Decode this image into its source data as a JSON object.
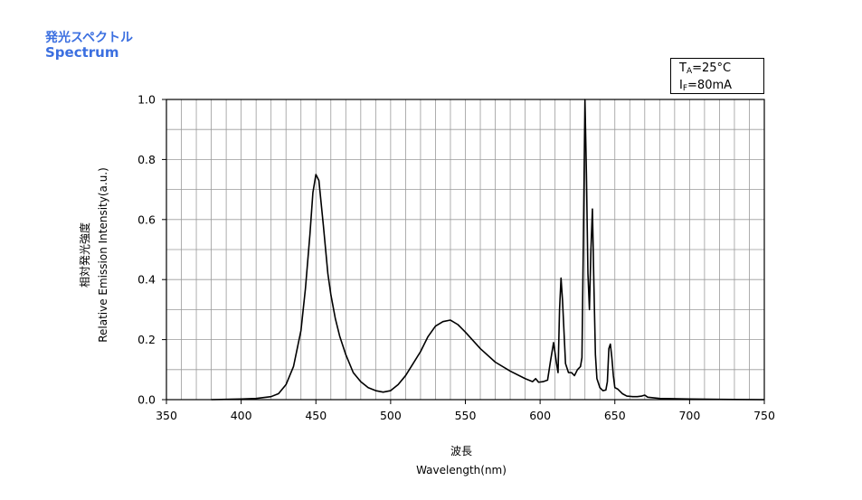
{
  "title_jp": "発光スペクトル",
  "title_en": "Spectrum",
  "conditions": {
    "ta_symbol": "T",
    "ta_sub": "A",
    "ta_value": "=25°C",
    "if_symbol": "I",
    "if_sub": "F",
    "if_value": "=80mA"
  },
  "chart_data": {
    "type": "line",
    "title": "Spectrum",
    "xlabel_jp": "波長",
    "xlabel": "Wavelength(nm)",
    "ylabel_jp": "相対発光強度",
    "ylabel": "Relative Emission Intensity(a.u.)",
    "xlim": [
      350,
      750
    ],
    "ylim": [
      0,
      1.0
    ],
    "xticks": [
      "350",
      "400",
      "450",
      "500",
      "550",
      "600",
      "650",
      "700",
      "750"
    ],
    "yticks": [
      "0.0",
      "0.2",
      "0.4",
      "0.6",
      "0.8",
      "1.0"
    ],
    "grid": true,
    "series": [
      {
        "x": [
          380,
          400,
          410,
          420,
          425,
          430,
          435,
          440,
          443,
          446,
          448,
          450,
          452,
          455,
          458,
          460,
          463,
          466,
          470,
          475,
          480,
          485,
          490,
          495,
          500,
          505,
          510,
          515,
          520,
          525,
          530,
          535,
          540,
          545,
          550,
          560,
          570,
          580,
          590,
          595,
          597,
          599,
          602,
          605,
          607,
          609,
          611,
          612,
          613,
          614,
          615,
          617,
          619,
          621,
          623,
          625,
          627,
          628,
          629,
          630,
          631,
          632,
          633,
          634,
          635,
          636,
          637,
          638,
          640,
          642,
          644,
          645,
          646,
          647,
          648,
          649,
          650,
          652,
          655,
          658,
          662,
          665,
          668,
          670,
          672,
          680,
          700,
          720,
          750
        ],
        "y": [
          0.0,
          0.002,
          0.004,
          0.01,
          0.02,
          0.05,
          0.11,
          0.23,
          0.37,
          0.55,
          0.69,
          0.75,
          0.73,
          0.58,
          0.42,
          0.35,
          0.27,
          0.21,
          0.15,
          0.09,
          0.06,
          0.04,
          0.03,
          0.025,
          0.03,
          0.05,
          0.08,
          0.12,
          0.16,
          0.21,
          0.245,
          0.26,
          0.265,
          0.25,
          0.225,
          0.17,
          0.125,
          0.095,
          0.07,
          0.06,
          0.07,
          0.058,
          0.06,
          0.065,
          0.13,
          0.19,
          0.12,
          0.09,
          0.3,
          0.405,
          0.33,
          0.12,
          0.09,
          0.09,
          0.08,
          0.1,
          0.11,
          0.14,
          0.55,
          1.0,
          0.75,
          0.42,
          0.3,
          0.5,
          0.635,
          0.38,
          0.15,
          0.07,
          0.04,
          0.03,
          0.032,
          0.06,
          0.17,
          0.185,
          0.14,
          0.08,
          0.04,
          0.035,
          0.02,
          0.012,
          0.01,
          0.01,
          0.012,
          0.015,
          0.008,
          0.004,
          0.002,
          0.001,
          0.0
        ]
      }
    ]
  }
}
